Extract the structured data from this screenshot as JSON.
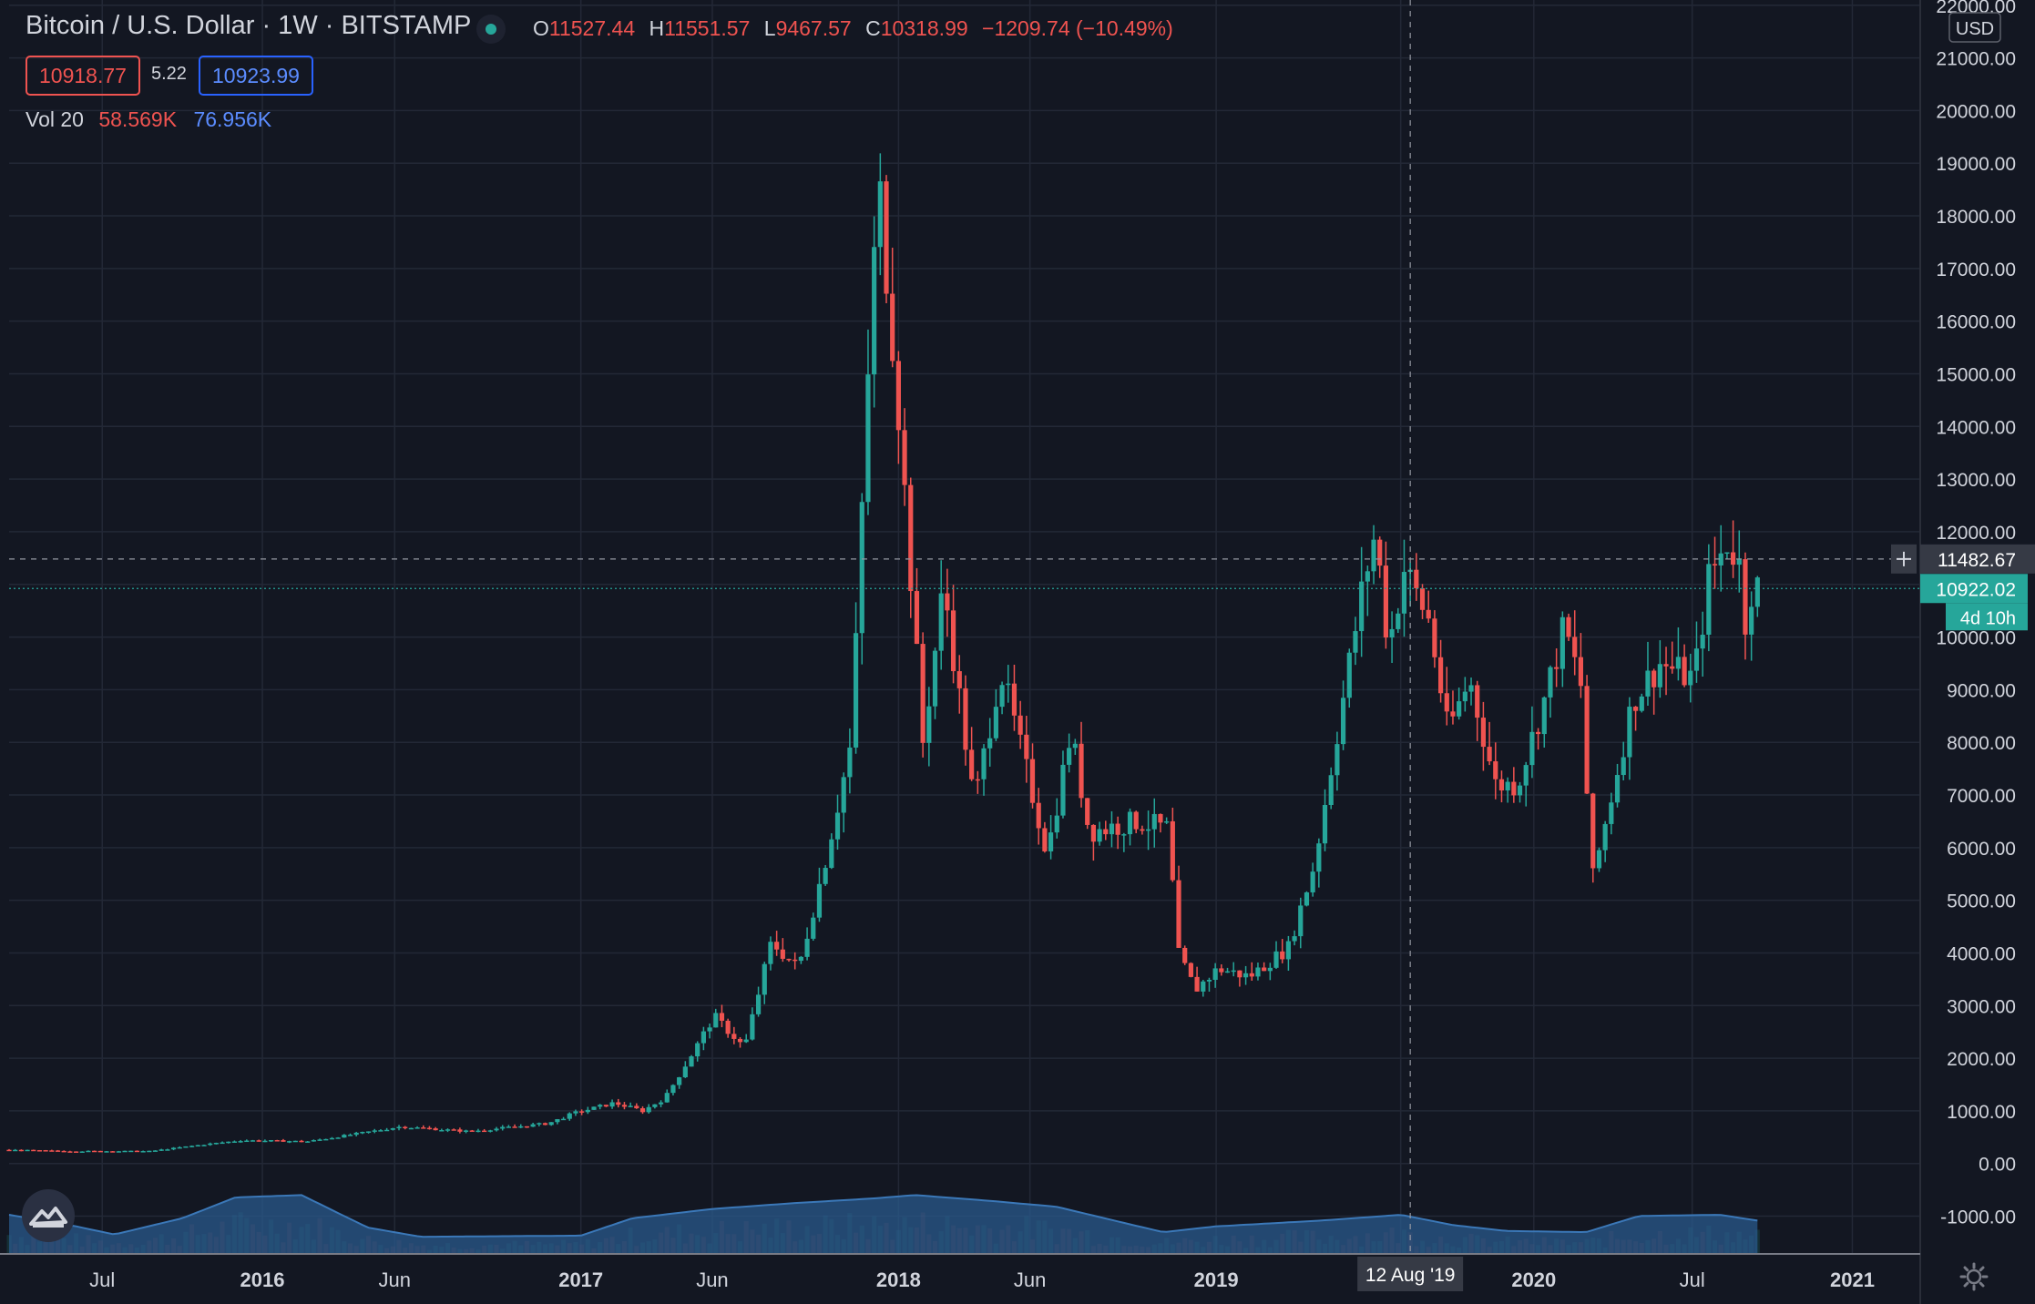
{
  "header": {
    "title": "Bitcoin / U.S. Dollar · 1W · BITSTAMP",
    "ohlc": {
      "o_label": "O",
      "o_value": "11527.44",
      "h_label": "H",
      "h_value": "11551.57",
      "l_label": "L",
      "l_value": "9467.57",
      "c_label": "C",
      "c_value": "10318.99",
      "change": "−1209.74 (−10.49%)"
    },
    "bid": "10918.77",
    "spread": "5.22",
    "ask": "10923.99",
    "volume": {
      "label": "Vol 20",
      "value1": "58.569K",
      "value2": "76.956K"
    }
  },
  "colors": {
    "background": "#131722",
    "up": "#26a69a",
    "down": "#ef5350",
    "volume_area": "#2a5a8c",
    "grid": "#232836",
    "text": "#d1d4dc"
  },
  "icons": {
    "status": "green-dot-icon",
    "logo": "tradingview-logo-icon",
    "settings": "gear-icon",
    "crosshair": "plus-icon"
  },
  "axis": {
    "currency": "USD",
    "crosshair_price": "11482.67",
    "last_price": "10922.02",
    "countdown": "4d 10h",
    "crosshair_date": "12 Aug '19"
  },
  "chart_data": {
    "type": "candlestick",
    "title": "Bitcoin / U.S. Dollar · 1W · BITSTAMP",
    "xlabel": "",
    "ylabel": "",
    "y_ticks": [
      "-1000.00",
      "0.00",
      "1000.00",
      "2000.00",
      "3000.00",
      "4000.00",
      "5000.00",
      "6000.00",
      "7000.00",
      "8000.00",
      "9000.00",
      "10000.00",
      "11000.00",
      "12000.00",
      "13000.00",
      "14000.00",
      "15000.00",
      "16000.00",
      "17000.00",
      "18000.00",
      "19000.00",
      "20000.00",
      "21000.00",
      "22000.00"
    ],
    "x_ticks": [
      "Jul",
      "2016",
      "Jun",
      "2017",
      "Jun",
      "2018",
      "Jun",
      "2019",
      "Aug",
      "2020",
      "Jul",
      "2021"
    ],
    "x_range": [
      "2015-03-16",
      "2021-03-20"
    ],
    "ylim": [
      -1700,
      22100
    ],
    "grid": true,
    "x_ticks_dates": [
      "2015-07-01",
      "2016-01-01",
      "2016-06-01",
      "2017-01-01",
      "2017-06-01",
      "2018-01-01",
      "2018-06-01",
      "2019-01-01",
      "2019-08-01",
      "2020-01-01",
      "2020-07-01",
      "2021-01-01"
    ],
    "price_keypoints": [
      [
        "2015-03-16",
        260
      ],
      [
        "2015-06-01",
        235
      ],
      [
        "2015-09-01",
        235
      ],
      [
        "2015-11-01",
        360
      ],
      [
        "2015-12-15",
        440
      ],
      [
        "2016-03-01",
        420
      ],
      [
        "2016-06-15",
        700
      ],
      [
        "2016-09-01",
        610
      ],
      [
        "2016-12-01",
        760
      ],
      [
        "2017-01-01",
        960
      ],
      [
        "2017-02-15",
        1150
      ],
      [
        "2017-03-20",
        1000
      ],
      [
        "2017-04-15",
        1250
      ],
      [
        "2017-05-20",
        2200
      ],
      [
        "2017-06-10",
        2800
      ],
      [
        "2017-07-15",
        2200
      ],
      [
        "2017-08-15",
        4200
      ],
      [
        "2017-09-15",
        3700
      ],
      [
        "2017-10-15",
        5700
      ],
      [
        "2017-11-15",
        8000
      ],
      [
        "2017-12-08",
        16500
      ],
      [
        "2017-12-17",
        18500
      ],
      [
        "2018-01-05",
        15000
      ],
      [
        "2018-02-05",
        8000
      ],
      [
        "2018-03-01",
        11000
      ],
      [
        "2018-04-05",
        6800
      ],
      [
        "2018-05-05",
        9400
      ],
      [
        "2018-06-28",
        5900
      ],
      [
        "2018-07-25",
        8200
      ],
      [
        "2018-08-15",
        6300
      ],
      [
        "2018-10-10",
        6500
      ],
      [
        "2018-11-14",
        6350
      ],
      [
        "2018-11-25",
        4000
      ],
      [
        "2018-12-15",
        3300
      ],
      [
        "2019-01-10",
        3700
      ],
      [
        "2019-02-15",
        3550
      ],
      [
        "2019-04-01",
        4100
      ],
      [
        "2019-05-01",
        5700
      ],
      [
        "2019-05-25",
        8000
      ],
      [
        "2019-06-26",
        11000
      ],
      [
        "2019-07-10",
        12000
      ],
      [
        "2019-07-25",
        9800
      ],
      [
        "2019-08-12",
        11300
      ],
      [
        "2019-09-10",
        10300
      ],
      [
        "2019-10-01",
        8200
      ],
      [
        "2019-10-26",
        9200
      ],
      [
        "2019-11-25",
        7200
      ],
      [
        "2019-12-20",
        7200
      ],
      [
        "2020-01-20",
        8800
      ],
      [
        "2020-02-12",
        10200
      ],
      [
        "2020-03-05",
        8900
      ],
      [
        "2020-03-13",
        5200
      ],
      [
        "2020-04-01",
        6600
      ],
      [
        "2020-05-01",
        8800
      ],
      [
        "2020-06-01",
        9500
      ],
      [
        "2020-07-10",
        9200
      ],
      [
        "2020-07-27",
        11100
      ],
      [
        "2020-08-17",
        11800
      ],
      [
        "2020-08-30",
        11500
      ],
      [
        "2020-09-07",
        10300
      ],
      [
        "2020-09-14",
        10920
      ]
    ],
    "volume_keypoints": [
      [
        "2015-03-16",
        330
      ],
      [
        "2015-06-01",
        230
      ],
      [
        "2015-07-15",
        160
      ],
      [
        "2015-10-01",
        300
      ],
      [
        "2015-12-01",
        480
      ],
      [
        "2016-02-15",
        500
      ],
      [
        "2016-05-01",
        220
      ],
      [
        "2016-07-01",
        140
      ],
      [
        "2017-01-01",
        150
      ],
      [
        "2017-03-01",
        300
      ],
      [
        "2017-06-01",
        380
      ],
      [
        "2017-09-01",
        430
      ],
      [
        "2017-12-01",
        470
      ],
      [
        "2018-01-20",
        500
      ],
      [
        "2018-04-01",
        460
      ],
      [
        "2018-07-01",
        400
      ],
      [
        "2018-11-01",
        180
      ],
      [
        "2019-01-01",
        230
      ],
      [
        "2019-05-01",
        280
      ],
      [
        "2019-08-01",
        330
      ],
      [
        "2019-10-01",
        240
      ],
      [
        "2019-12-01",
        190
      ],
      [
        "2020-03-01",
        180
      ],
      [
        "2020-05-01",
        320
      ],
      [
        "2020-08-01",
        330
      ],
      [
        "2020-09-14",
        280
      ]
    ]
  }
}
